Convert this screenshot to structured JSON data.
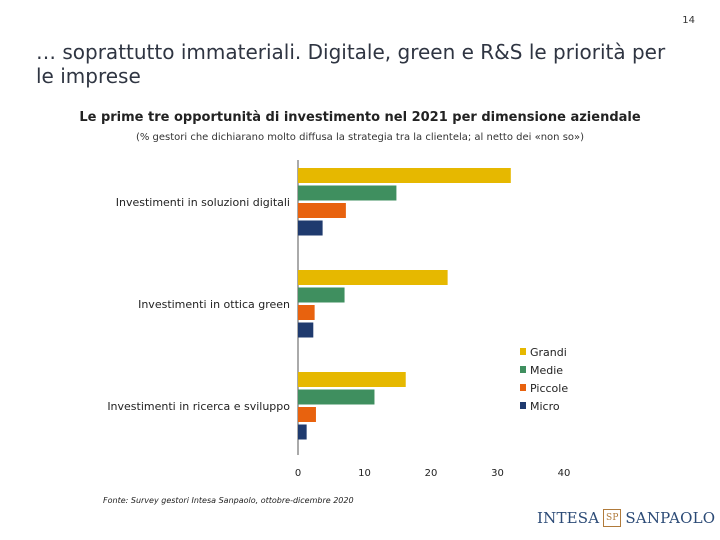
{
  "page": {
    "number": "14",
    "title": "… soprattutto immateriali. Digitale, green e R&S le priorità per le imprese",
    "source": "Fonte: Survey gestori Intesa Sanpaolo, ottobre-dicembre 2020"
  },
  "logo": {
    "part1": "INTESA",
    "mark": "SP",
    "part2": "SANPAOLO"
  },
  "chart_data": {
    "type": "bar",
    "orientation": "horizontal",
    "title": "Le prime tre opportunità di investimento nel 2021 per dimensione aziendale",
    "subtitle": "(% gestori che dichiarano molto diffusa la strategia tra la clientela; al netto dei «non so»)",
    "categories": [
      "Investimenti in soluzioni digitali",
      "Investimenti in ottica green",
      "Investimenti in ricerca e sviluppo"
    ],
    "series": [
      {
        "name": "Grandi",
        "color": "#e6b800",
        "values": [
          32,
          22.5,
          16.2
        ]
      },
      {
        "name": "Medie",
        "color": "#3f8f5f",
        "values": [
          14.8,
          7,
          11.5
        ]
      },
      {
        "name": "Piccole",
        "color": "#e8620e",
        "values": [
          7.2,
          2.5,
          2.7
        ]
      },
      {
        "name": "Micro",
        "color": "#1f3a6e",
        "values": [
          3.7,
          2.3,
          1.3
        ]
      }
    ],
    "xlim": [
      0,
      40
    ],
    "xticks": [
      0,
      10,
      20,
      30,
      40
    ],
    "legend_position": "right",
    "grid": false
  }
}
